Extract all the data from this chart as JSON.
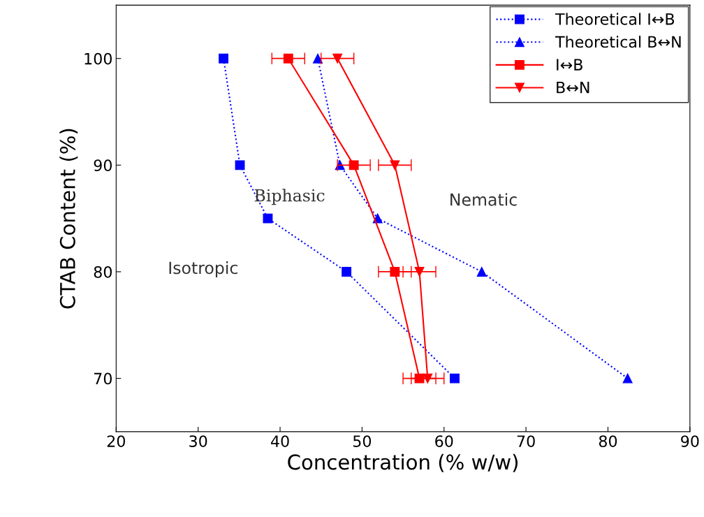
{
  "chart_data": {
    "type": "line",
    "xlabel": "Concentration (% w/w)",
    "ylabel": "CTAB Content (%)",
    "xlim": [
      20,
      90
    ],
    "ylim": [
      65,
      105
    ],
    "xticks": [
      20,
      30,
      40,
      50,
      60,
      70,
      80,
      90
    ],
    "yticks": [
      70,
      80,
      90,
      100
    ],
    "grid": false,
    "legend": "top right",
    "series": [
      {
        "name": "Theoretical I↔B",
        "color": "#0000ff",
        "marker": "square",
        "line_style": "dotted",
        "x": [
          33.1,
          35.1,
          38.5,
          48.1,
          61.3
        ],
        "values": [
          100,
          90,
          85,
          80,
          70
        ]
      },
      {
        "name": "Theoretical B↔N",
        "color": "#0000ff",
        "marker": "triangle",
        "line_style": "dotted",
        "x": [
          44.6,
          47.3,
          51.9,
          64.6,
          82.4
        ],
        "values": [
          100,
          90,
          85,
          80,
          70
        ]
      },
      {
        "name": "I↔B",
        "color": "#ff0000",
        "marker": "square",
        "line_style": "solid",
        "x": [
          41,
          49,
          54,
          57
        ],
        "values": [
          100,
          90,
          80,
          70
        ],
        "xerrors": [
          2,
          2,
          2,
          2
        ]
      },
      {
        "name": "B↔N",
        "color": "#ff0000",
        "marker": "triangle_down",
        "line_style": "solid",
        "x": [
          47,
          54,
          57,
          58
        ],
        "values": [
          100,
          90,
          80,
          70
        ],
        "xerrors": [
          2,
          2,
          2,
          2
        ]
      }
    ],
    "annotations": [
      "Isotropic",
      "Biphasic",
      "Nematic"
    ]
  }
}
